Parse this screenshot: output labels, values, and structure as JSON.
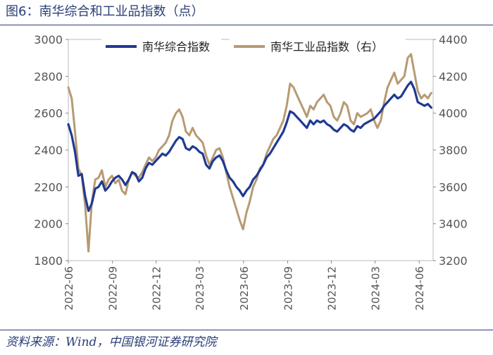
{
  "title": "图6：南华综合和工业品指数（点）",
  "source": "资料来源：Wind，中国银河证券研究院",
  "colors": {
    "header": "#2a3e78",
    "composite": "#1f3a93",
    "industrial": "#b79a72",
    "axis": "#888888",
    "text": "#555555"
  },
  "chart_data": {
    "type": "line",
    "title": "图6：南华综合和工业品指数（点）",
    "x_ticks": [
      "2022-06",
      "2022-09",
      "2022-12",
      "2023-03",
      "2023-06",
      "2023-09",
      "2023-12",
      "2024-03",
      "2024-06"
    ],
    "x_range": [
      "2022-06-01",
      "2024-06-30"
    ],
    "y_left": {
      "min": 1800,
      "max": 3000,
      "ticks": [
        1800,
        2000,
        2200,
        2400,
        2600,
        2800,
        3000
      ]
    },
    "y_right": {
      "min": 3200,
      "max": 4400,
      "ticks": [
        3200,
        3400,
        3600,
        3800,
        4000,
        4200,
        4400
      ]
    },
    "legend": [
      "南华综合指数",
      "南华工业品指数（右）"
    ],
    "legend_position": "top",
    "series": [
      {
        "name": "南华综合指数",
        "axis": "left",
        "color": "#1f3a93",
        "points": [
          [
            "2022-06-01",
            2540
          ],
          [
            "2022-06-08",
            2480
          ],
          [
            "2022-06-15",
            2390
          ],
          [
            "2022-06-22",
            2260
          ],
          [
            "2022-06-29",
            2270
          ],
          [
            "2022-07-06",
            2150
          ],
          [
            "2022-07-13",
            2070
          ],
          [
            "2022-07-20",
            2110
          ],
          [
            "2022-07-27",
            2190
          ],
          [
            "2022-08-03",
            2200
          ],
          [
            "2022-08-10",
            2230
          ],
          [
            "2022-08-17",
            2180
          ],
          [
            "2022-08-24",
            2200
          ],
          [
            "2022-08-31",
            2230
          ],
          [
            "2022-09-07",
            2250
          ],
          [
            "2022-09-14",
            2260
          ],
          [
            "2022-09-21",
            2240
          ],
          [
            "2022-09-28",
            2210
          ],
          [
            "2022-10-05",
            2240
          ],
          [
            "2022-10-12",
            2280
          ],
          [
            "2022-10-19",
            2270
          ],
          [
            "2022-10-26",
            2230
          ],
          [
            "2022-11-02",
            2250
          ],
          [
            "2022-11-09",
            2300
          ],
          [
            "2022-11-16",
            2330
          ],
          [
            "2022-11-23",
            2320
          ],
          [
            "2022-11-30",
            2340
          ],
          [
            "2022-12-07",
            2360
          ],
          [
            "2022-12-14",
            2380
          ],
          [
            "2022-12-21",
            2370
          ],
          [
            "2022-12-28",
            2390
          ],
          [
            "2023-01-04",
            2420
          ],
          [
            "2023-01-11",
            2450
          ],
          [
            "2023-01-18",
            2470
          ],
          [
            "2023-01-25",
            2460
          ],
          [
            "2023-02-01",
            2410
          ],
          [
            "2023-02-08",
            2400
          ],
          [
            "2023-02-15",
            2420
          ],
          [
            "2023-02-22",
            2410
          ],
          [
            "2023-03-01",
            2390
          ],
          [
            "2023-03-08",
            2380
          ],
          [
            "2023-03-15",
            2320
          ],
          [
            "2023-03-22",
            2300
          ],
          [
            "2023-03-29",
            2340
          ],
          [
            "2023-04-05",
            2360
          ],
          [
            "2023-04-12",
            2370
          ],
          [
            "2023-04-19",
            2340
          ],
          [
            "2023-04-26",
            2290
          ],
          [
            "2023-05-03",
            2250
          ],
          [
            "2023-05-10",
            2230
          ],
          [
            "2023-05-17",
            2200
          ],
          [
            "2023-05-24",
            2180
          ],
          [
            "2023-05-31",
            2150
          ],
          [
            "2023-06-07",
            2180
          ],
          [
            "2023-06-14",
            2200
          ],
          [
            "2023-06-21",
            2240
          ],
          [
            "2023-06-28",
            2260
          ],
          [
            "2023-07-05",
            2290
          ],
          [
            "2023-07-12",
            2320
          ],
          [
            "2023-07-19",
            2360
          ],
          [
            "2023-07-26",
            2380
          ],
          [
            "2023-08-02",
            2410
          ],
          [
            "2023-08-09",
            2440
          ],
          [
            "2023-08-16",
            2470
          ],
          [
            "2023-08-23",
            2500
          ],
          [
            "2023-08-30",
            2550
          ],
          [
            "2023-09-06",
            2610
          ],
          [
            "2023-09-13",
            2600
          ],
          [
            "2023-09-20",
            2580
          ],
          [
            "2023-09-27",
            2560
          ],
          [
            "2023-10-04",
            2540
          ],
          [
            "2023-10-11",
            2520
          ],
          [
            "2023-10-18",
            2560
          ],
          [
            "2023-10-25",
            2540
          ],
          [
            "2023-11-01",
            2560
          ],
          [
            "2023-11-08",
            2550
          ],
          [
            "2023-11-15",
            2560
          ],
          [
            "2023-11-22",
            2540
          ],
          [
            "2023-11-29",
            2530
          ],
          [
            "2023-12-06",
            2510
          ],
          [
            "2023-12-13",
            2500
          ],
          [
            "2023-12-20",
            2520
          ],
          [
            "2023-12-27",
            2540
          ],
          [
            "2024-01-03",
            2530
          ],
          [
            "2024-01-10",
            2510
          ],
          [
            "2024-01-17",
            2500
          ],
          [
            "2024-01-24",
            2530
          ],
          [
            "2024-01-31",
            2520
          ],
          [
            "2024-02-07",
            2540
          ],
          [
            "2024-02-14",
            2550
          ],
          [
            "2024-02-21",
            2560
          ],
          [
            "2024-02-28",
            2570
          ],
          [
            "2024-03-06",
            2590
          ],
          [
            "2024-03-13",
            2610
          ],
          [
            "2024-03-20",
            2640
          ],
          [
            "2024-03-27",
            2660
          ],
          [
            "2024-04-03",
            2680
          ],
          [
            "2024-04-10",
            2700
          ],
          [
            "2024-04-17",
            2680
          ],
          [
            "2024-04-24",
            2690
          ],
          [
            "2024-05-01",
            2720
          ],
          [
            "2024-05-08",
            2750
          ],
          [
            "2024-05-15",
            2770
          ],
          [
            "2024-05-22",
            2730
          ],
          [
            "2024-05-29",
            2660
          ],
          [
            "2024-06-05",
            2650
          ],
          [
            "2024-06-12",
            2640
          ],
          [
            "2024-06-19",
            2650
          ],
          [
            "2024-06-26",
            2630
          ]
        ]
      },
      {
        "name": "南华工业品指数（右）",
        "axis": "right",
        "color": "#b79a72",
        "points": [
          [
            "2022-06-01",
            4140
          ],
          [
            "2022-06-08",
            4080
          ],
          [
            "2022-06-15",
            3900
          ],
          [
            "2022-06-22",
            3700
          ],
          [
            "2022-06-29",
            3660
          ],
          [
            "2022-07-06",
            3500
          ],
          [
            "2022-07-13",
            3250
          ],
          [
            "2022-07-20",
            3520
          ],
          [
            "2022-07-27",
            3640
          ],
          [
            "2022-08-03",
            3650
          ],
          [
            "2022-08-10",
            3690
          ],
          [
            "2022-08-17",
            3600
          ],
          [
            "2022-08-24",
            3640
          ],
          [
            "2022-08-31",
            3660
          ],
          [
            "2022-09-07",
            3620
          ],
          [
            "2022-09-14",
            3640
          ],
          [
            "2022-09-21",
            3580
          ],
          [
            "2022-09-28",
            3560
          ],
          [
            "2022-10-05",
            3640
          ],
          [
            "2022-10-12",
            3680
          ],
          [
            "2022-10-19",
            3660
          ],
          [
            "2022-10-26",
            3650
          ],
          [
            "2022-11-02",
            3680
          ],
          [
            "2022-11-09",
            3720
          ],
          [
            "2022-11-16",
            3760
          ],
          [
            "2022-11-23",
            3740
          ],
          [
            "2022-11-30",
            3760
          ],
          [
            "2022-12-07",
            3800
          ],
          [
            "2022-12-14",
            3820
          ],
          [
            "2022-12-21",
            3840
          ],
          [
            "2022-12-28",
            3880
          ],
          [
            "2023-01-04",
            3960
          ],
          [
            "2023-01-11",
            4000
          ],
          [
            "2023-01-18",
            4020
          ],
          [
            "2023-01-25",
            3980
          ],
          [
            "2023-02-01",
            3900
          ],
          [
            "2023-02-08",
            3880
          ],
          [
            "2023-02-15",
            3920
          ],
          [
            "2023-02-22",
            3880
          ],
          [
            "2023-03-01",
            3860
          ],
          [
            "2023-03-08",
            3840
          ],
          [
            "2023-03-15",
            3770
          ],
          [
            "2023-03-22",
            3720
          ],
          [
            "2023-03-29",
            3760
          ],
          [
            "2023-04-05",
            3800
          ],
          [
            "2023-04-12",
            3810
          ],
          [
            "2023-04-19",
            3760
          ],
          [
            "2023-04-26",
            3680
          ],
          [
            "2023-05-03",
            3600
          ],
          [
            "2023-05-10",
            3540
          ],
          [
            "2023-05-17",
            3480
          ],
          [
            "2023-05-24",
            3420
          ],
          [
            "2023-05-31",
            3370
          ],
          [
            "2023-06-07",
            3460
          ],
          [
            "2023-06-14",
            3520
          ],
          [
            "2023-06-21",
            3600
          ],
          [
            "2023-06-28",
            3640
          ],
          [
            "2023-07-05",
            3700
          ],
          [
            "2023-07-12",
            3720
          ],
          [
            "2023-07-19",
            3780
          ],
          [
            "2023-07-26",
            3820
          ],
          [
            "2023-08-02",
            3860
          ],
          [
            "2023-08-09",
            3880
          ],
          [
            "2023-08-16",
            3920
          ],
          [
            "2023-08-23",
            3960
          ],
          [
            "2023-08-30",
            4040
          ],
          [
            "2023-09-06",
            4160
          ],
          [
            "2023-09-13",
            4140
          ],
          [
            "2023-09-20",
            4100
          ],
          [
            "2023-09-27",
            4060
          ],
          [
            "2023-10-04",
            4020
          ],
          [
            "2023-10-11",
            3980
          ],
          [
            "2023-10-18",
            4040
          ],
          [
            "2023-10-25",
            4020
          ],
          [
            "2023-11-01",
            4060
          ],
          [
            "2023-11-08",
            4080
          ],
          [
            "2023-11-15",
            4100
          ],
          [
            "2023-11-22",
            4060
          ],
          [
            "2023-11-29",
            4040
          ],
          [
            "2023-12-06",
            3980
          ],
          [
            "2023-12-13",
            3960
          ],
          [
            "2023-12-20",
            4000
          ],
          [
            "2023-12-27",
            4060
          ],
          [
            "2024-01-03",
            4040
          ],
          [
            "2024-01-10",
            3960
          ],
          [
            "2024-01-17",
            3940
          ],
          [
            "2024-01-24",
            4000
          ],
          [
            "2024-01-31",
            3980
          ],
          [
            "2024-02-07",
            3990
          ],
          [
            "2024-02-14",
            4000
          ],
          [
            "2024-02-21",
            4020
          ],
          [
            "2024-02-28",
            3960
          ],
          [
            "2024-03-06",
            3920
          ],
          [
            "2024-03-13",
            3960
          ],
          [
            "2024-03-20",
            4060
          ],
          [
            "2024-03-27",
            4140
          ],
          [
            "2024-04-03",
            4180
          ],
          [
            "2024-04-10",
            4220
          ],
          [
            "2024-04-17",
            4160
          ],
          [
            "2024-04-24",
            4180
          ],
          [
            "2024-05-01",
            4200
          ],
          [
            "2024-05-08",
            4300
          ],
          [
            "2024-05-15",
            4320
          ],
          [
            "2024-05-22",
            4220
          ],
          [
            "2024-05-29",
            4120
          ],
          [
            "2024-06-05",
            4080
          ],
          [
            "2024-06-12",
            4100
          ],
          [
            "2024-06-19",
            4080
          ],
          [
            "2024-06-26",
            4110
          ]
        ]
      }
    ]
  }
}
